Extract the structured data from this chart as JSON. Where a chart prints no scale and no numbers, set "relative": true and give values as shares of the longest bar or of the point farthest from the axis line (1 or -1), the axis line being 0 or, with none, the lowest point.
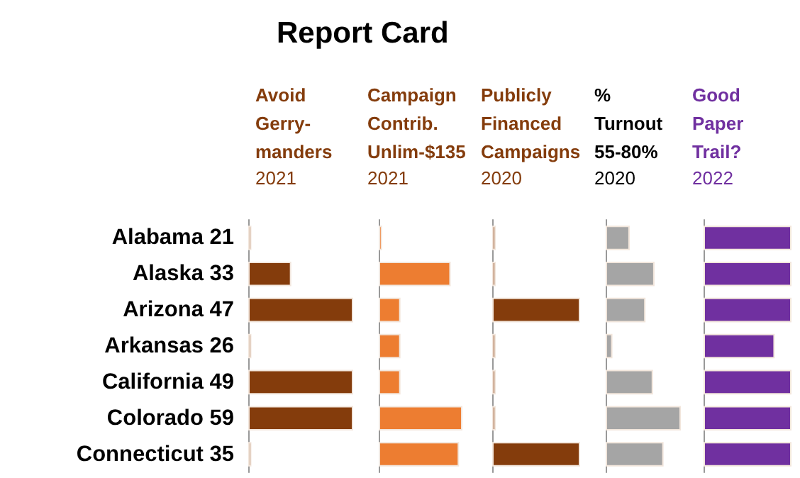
{
  "chart_data": [
    {
      "type": "bar",
      "orientation": "horizontal",
      "relative": true,
      "annotations": [
        "Report Card"
      ],
      "title": "Avoid\nGerry-\nmanders",
      "subtitle": "2021",
      "categories": [
        "Alabama 21",
        "Alaska 33",
        "Arizona 47",
        "Arkansas 26",
        "California 49",
        "Colorado 59",
        "Connecticut 35"
      ],
      "series": [
        {
          "color": "#843c0c",
          "values": [
            0.03,
            0.41,
            1,
            0.03,
            1,
            1,
            0.03
          ]
        }
      ]
    },
    {
      "type": "bar",
      "orientation": "horizontal",
      "relative": true,
      "title": "Campaign\nContrib.\nUnlim-$135",
      "subtitle": "2021",
      "categories": [
        null,
        null,
        null,
        null,
        null,
        null,
        null
      ],
      "series": [
        {
          "color": "#ed7d31",
          "values": [
            0.04,
            0.86,
            0.26,
            0.26,
            0.26,
            1,
            0.96
          ]
        }
      ]
    },
    {
      "type": "bar",
      "orientation": "horizontal",
      "relative": true,
      "title": "Publicly\nFinanced\nCampaigns",
      "subtitle": "2020",
      "categories": [
        null,
        null,
        null,
        null,
        null,
        null,
        null
      ],
      "series": [
        {
          "color": "#843c0c",
          "values": [
            0.04,
            0.04,
            1,
            0.04,
            0.04,
            0.04,
            1
          ]
        }
      ]
    },
    {
      "type": "bar",
      "orientation": "horizontal",
      "relative": true,
      "title": "%\nTurnout\n55-80%",
      "subtitle": "2020",
      "categories": [
        null,
        null,
        null,
        null,
        null,
        null,
        null
      ],
      "series": [
        {
          "color": "#a5a5a5",
          "values": [
            0.32,
            0.65,
            0.53,
            0.09,
            0.63,
            1,
            0.77
          ]
        }
      ]
    },
    {
      "type": "bar",
      "orientation": "horizontal",
      "relative": true,
      "title": "Good\nPaper\nTrail?",
      "subtitle": "2022",
      "categories": [
        null,
        null,
        null,
        null,
        null,
        null,
        null
      ],
      "series": [
        {
          "color": "#7030a0",
          "values": [
            1,
            1,
            1,
            0.81,
            1,
            1,
            1
          ]
        }
      ]
    }
  ]
}
